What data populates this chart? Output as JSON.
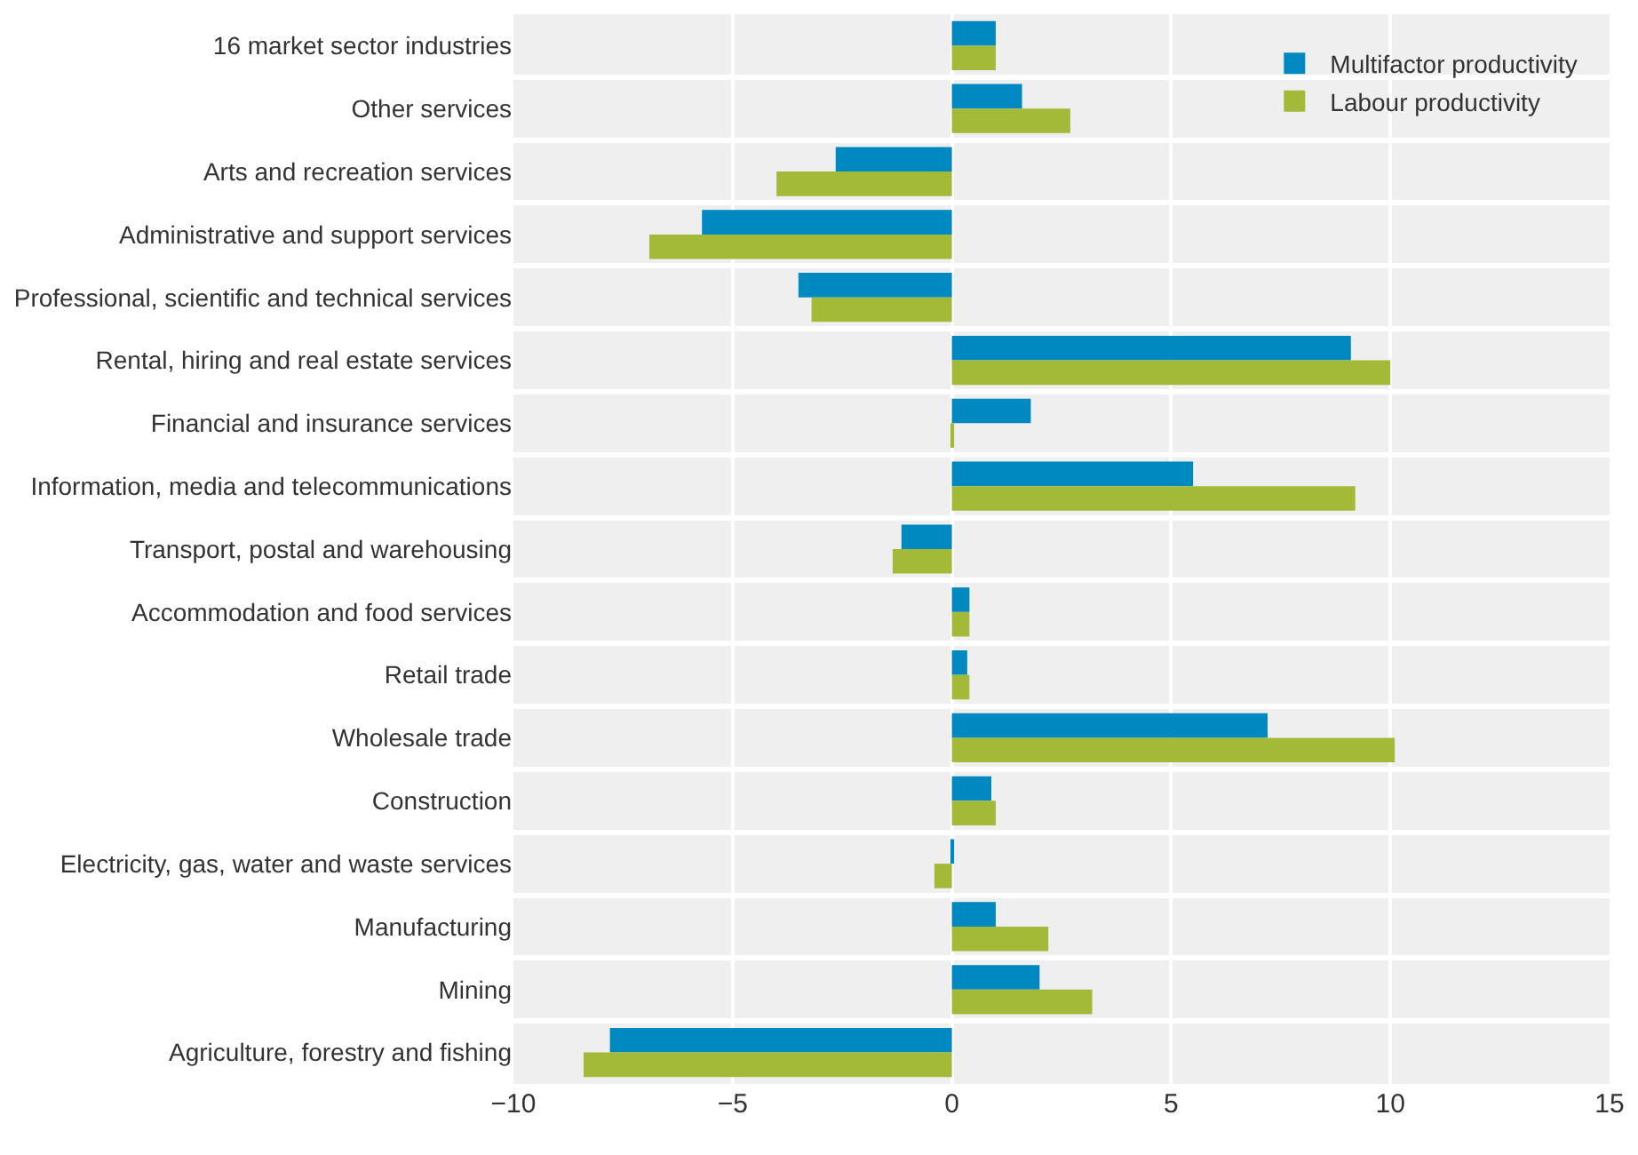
{
  "chart_data": {
    "type": "bar",
    "orientation": "horizontal",
    "categories": [
      "16 market sector industries",
      "Other services",
      "Arts and recreation services",
      "Administrative and support services",
      "Professional, scientific and technical services",
      "Rental, hiring and real estate services",
      "Financial and insurance services",
      "Information, media and telecommunications",
      "Transport, postal and warehousing",
      "Accommodation and food services",
      "Retail trade",
      "Wholesale trade",
      "Construction",
      "Electricity, gas, water and waste services",
      "Manufacturing",
      "Mining",
      "Agriculture, forestry and fishing"
    ],
    "series": [
      {
        "name": "Multifactor productivity",
        "color": "#0089c0",
        "values": [
          1.0,
          1.6,
          -2.65,
          -5.7,
          -3.5,
          9.1,
          1.8,
          5.5,
          -1.15,
          0.4,
          0.35,
          7.2,
          0.9,
          0.05,
          1.0,
          2.0,
          -7.8
        ]
      },
      {
        "name": "Labour productivity",
        "color": "#a3b938",
        "values": [
          1.0,
          2.7,
          -4.0,
          -6.9,
          -3.2,
          10.0,
          0.05,
          9.2,
          -1.35,
          0.4,
          0.4,
          10.1,
          1.0,
          -0.4,
          2.2,
          3.2,
          -8.4
        ]
      }
    ],
    "xlim": [
      -10,
      15
    ],
    "xticks": [
      {
        "value": -10,
        "label": "−10"
      },
      {
        "value": -5,
        "label": "−5"
      },
      0,
      5,
      10,
      15
    ],
    "grid": true,
    "legend": "top right"
  }
}
